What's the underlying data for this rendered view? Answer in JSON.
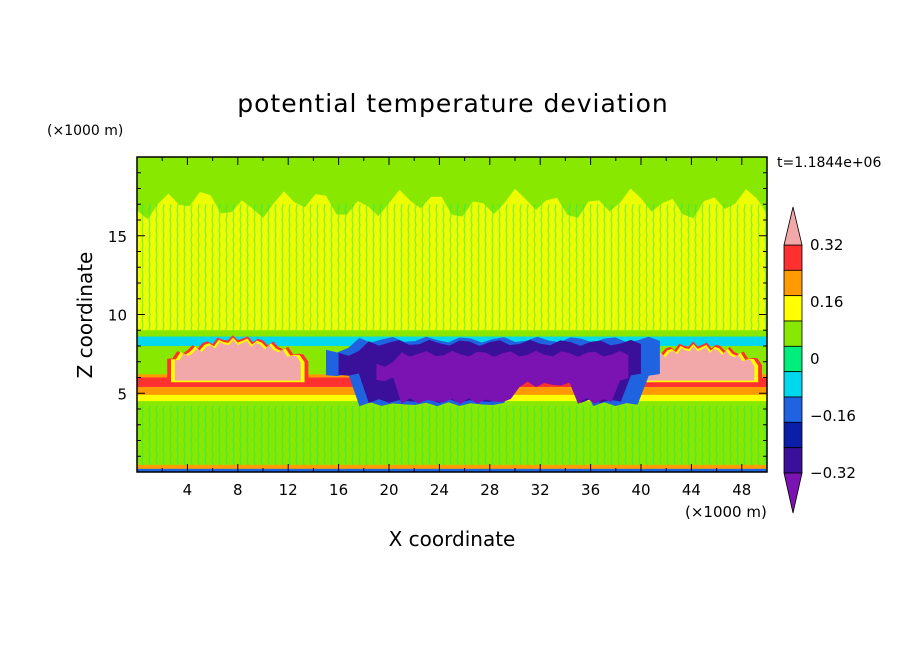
{
  "chart_data": {
    "type": "heatmap",
    "title": "potential temperature deviation",
    "time_label": "t=1.1844e+06",
    "xlabel": "X coordinate",
    "ylabel": "Z coordinate",
    "x_unit": "(×1000 m)",
    "y_unit": "(×1000 m)",
    "xlim": [
      0,
      50
    ],
    "ylim": [
      0,
      20
    ],
    "x_ticks": [
      4,
      8,
      12,
      16,
      20,
      24,
      28,
      32,
      36,
      40,
      44,
      48
    ],
    "y_ticks": [
      5,
      10,
      15
    ],
    "colorbar": {
      "levels": [
        -0.4,
        -0.32,
        -0.24,
        -0.16,
        -0.08,
        0,
        0.08,
        0.16,
        0.24,
        0.32,
        0.4
      ],
      "tick_labels": [
        "0.32",
        "0.16",
        "0",
        "−0.16",
        "−0.32"
      ],
      "tick_values": [
        0.32,
        0.16,
        0,
        -0.16,
        -0.32
      ],
      "colors": [
        "#7b12b2",
        "#3a0f9a",
        "#0a1ea8",
        "#1f63e0",
        "#00d8ee",
        "#00ee7c",
        "#88e800",
        "#ffff00",
        "#ff9a00",
        "#ff3030",
        "#f2a8a8"
      ],
      "extend": "both"
    },
    "regions": [
      {
        "name": "background",
        "value": 0.04
      },
      {
        "name": "upper-band",
        "value": 0.1,
        "x": [
          0,
          50
        ],
        "z": [
          9,
          17
        ]
      },
      {
        "name": "warm-layer",
        "value": 0.3,
        "x": [
          0,
          50
        ],
        "z": [
          4.5,
          6
        ]
      },
      {
        "name": "warm-anomaly-left",
        "value": 0.45,
        "x": [
          3,
          13
        ],
        "z": [
          5.8,
          8.2
        ]
      },
      {
        "name": "warm-anomaly-right",
        "value": 0.45,
        "x": [
          40,
          49
        ],
        "z": [
          5.8,
          7.8
        ]
      },
      {
        "name": "cold-anomaly-outer",
        "value": -0.34,
        "x": [
          16,
          40
        ],
        "z": [
          4.5,
          8.2
        ]
      },
      {
        "name": "cold-anomaly-core",
        "value": -0.42,
        "x": [
          19,
          39
        ],
        "z": [
          4.5,
          7.5
        ]
      },
      {
        "name": "cold-rim",
        "value": -0.14,
        "x": [
          0,
          50
        ],
        "z": [
          8,
          8.6
        ]
      }
    ]
  }
}
